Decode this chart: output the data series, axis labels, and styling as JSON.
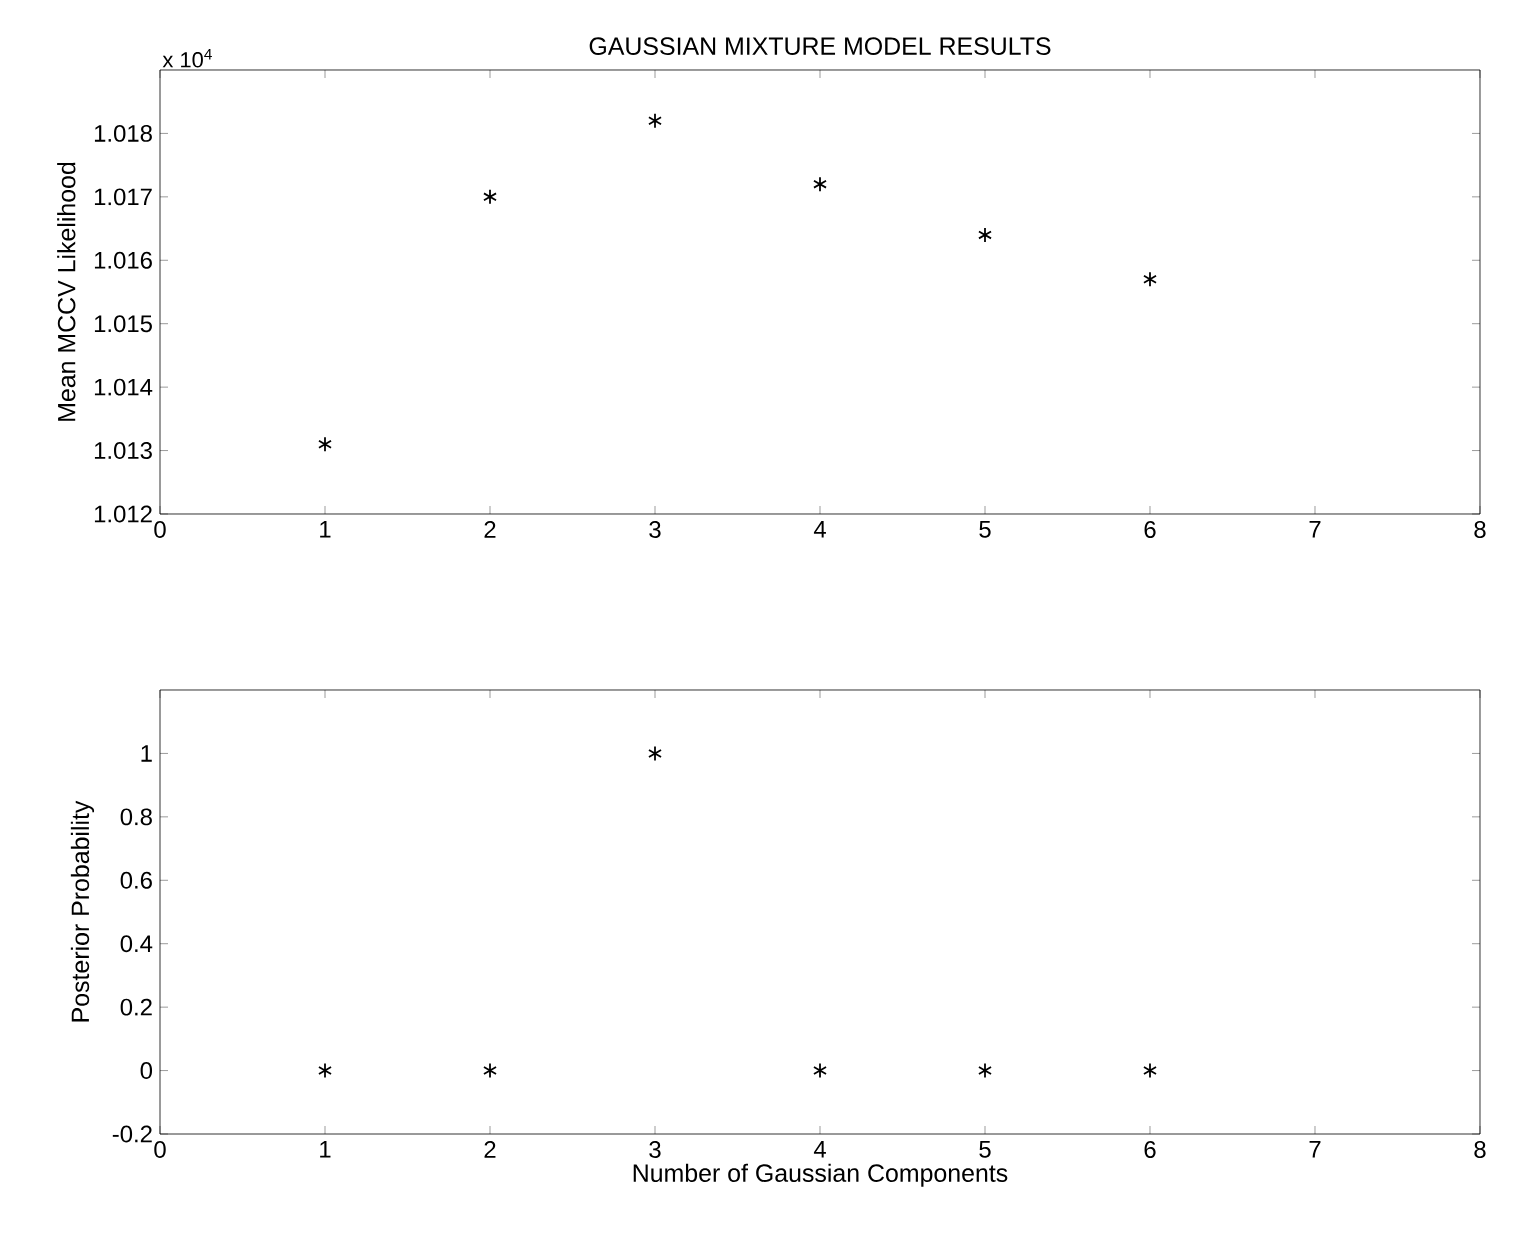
{
  "chart_data": [
    {
      "type": "scatter",
      "title": "GAUSSIAN MIXTURE MODEL RESULTS",
      "ylabel": "Mean MCCV Likelihood",
      "annotations": [
        "x 10$^{4}$"
      ],
      "x": [
        1,
        2,
        3,
        4,
        5,
        6
      ],
      "marker": "cross",
      "series": [
        {
          "color": "#000000",
          "values": [
            1.0131,
            1.017,
            1.0182,
            1.0172,
            1.0164,
            1.0157
          ]
        }
      ],
      "xlim": [
        0,
        8
      ],
      "xticks": [
        0,
        1,
        2,
        3,
        4,
        5,
        6,
        7,
        8
      ],
      "ylim": [
        1.012,
        1.019
      ],
      "yticks": [
        1.012,
        1.013,
        1.014,
        1.015,
        1.016,
        1.017,
        1.018
      ]
    },
    {
      "type": "scatter",
      "xlabel": "Number of Gaussian Components",
      "ylabel": "Posterior Probability",
      "x": [
        1,
        2,
        3,
        4,
        5,
        6
      ],
      "marker": "cross",
      "series": [
        {
          "color": "#000000",
          "values": [
            0,
            0,
            1,
            0,
            0,
            0
          ]
        }
      ],
      "xlim": [
        0,
        8
      ],
      "xticks": [
        0,
        1,
        2,
        3,
        4,
        5,
        6,
        7,
        8
      ],
      "ylim": [
        -0.2,
        1.2
      ],
      "yticks": [
        -0.2,
        0,
        0.2,
        0.4,
        0.6,
        0.8,
        1
      ]
    }
  ]
}
